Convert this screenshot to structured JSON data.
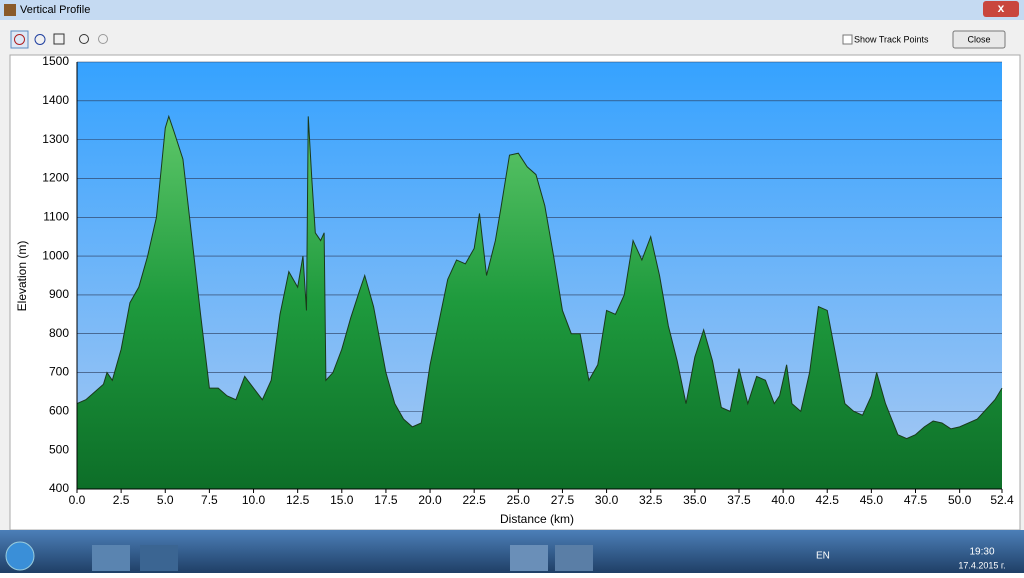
{
  "window": {
    "title": "Vertical Profile",
    "show_track_points": "Show Track Points",
    "close": "Close"
  },
  "chart_data": {
    "type": "area",
    "y_label": "Elevation (m)",
    "x_label": "Distance   (km)",
    "x": [
      0,
      0.5,
      1,
      1.5,
      1.7,
      2,
      2.5,
      3,
      3.5,
      4,
      4.5,
      5,
      5.2,
      5.5,
      6,
      6.5,
      7,
      7.5,
      8,
      8.5,
      9,
      9.5,
      10,
      10.5,
      11,
      11.5,
      12,
      12.5,
      12.8,
      13,
      13.1,
      13.3,
      13.5,
      13.8,
      14,
      14.1,
      14.5,
      15,
      15.5,
      16,
      16.3,
      16.8,
      17.5,
      18,
      18.5,
      19,
      19.5,
      20,
      20.5,
      21,
      21.5,
      22,
      22.5,
      22.8,
      23.2,
      23.7,
      24,
      24.5,
      25,
      25.5,
      26,
      26.5,
      27,
      27.5,
      28,
      28.5,
      29,
      29.5,
      30,
      30.5,
      31,
      31.5,
      32,
      32.5,
      33,
      33.5,
      34,
      34.5,
      35,
      35.5,
      36,
      36.5,
      37,
      37.5,
      38,
      38.5,
      39,
      39.5,
      39.8,
      40.2,
      40.5,
      41,
      41.5,
      42,
      42.5,
      43,
      43.5,
      44,
      44.5,
      45,
      45.3,
      45.8,
      46.5,
      47,
      47.5,
      48,
      48.5,
      49,
      49.5,
      50,
      51,
      52,
      52.4
    ],
    "values": [
      620,
      630,
      650,
      670,
      700,
      680,
      760,
      880,
      920,
      1000,
      1100,
      1330,
      1360,
      1320,
      1250,
      1050,
      850,
      660,
      660,
      640,
      630,
      690,
      660,
      630,
      680,
      850,
      960,
      920,
      1000,
      860,
      1360,
      1200,
      1060,
      1040,
      1060,
      680,
      700,
      760,
      840,
      910,
      950,
      870,
      700,
      620,
      580,
      560,
      570,
      720,
      830,
      940,
      990,
      980,
      1020,
      1110,
      950,
      1040,
      1120,
      1260,
      1265,
      1230,
      1210,
      1130,
      1000,
      860,
      800,
      800,
      680,
      720,
      860,
      850,
      900,
      1040,
      990,
      1050,
      950,
      820,
      730,
      620,
      740,
      810,
      730,
      610,
      600,
      710,
      620,
      690,
      680,
      620,
      640,
      720,
      620,
      600,
      700,
      870,
      860,
      740,
      620,
      600,
      590,
      640,
      700,
      620,
      540,
      530,
      540,
      560,
      575,
      570,
      555,
      560,
      580,
      630,
      660
    ],
    "color": "#1e9a3d",
    "grid": true,
    "xlim": [
      0,
      52.4
    ],
    "ylim": [
      400,
      1500
    ],
    "xticks": [
      {
        "value": 0,
        "label": "0.0"
      },
      2.5,
      {
        "value": 5,
        "label": "5.0"
      },
      7.5,
      {
        "value": 10,
        "label": "10.0"
      },
      12.5,
      {
        "value": 15,
        "label": "15.0"
      },
      17.5,
      {
        "value": 20,
        "label": "20.0"
      },
      22.5,
      {
        "value": 25,
        "label": "25.0"
      },
      27.5,
      {
        "value": 30,
        "label": "30.0"
      },
      32.5,
      {
        "value": 35,
        "label": "35.0"
      },
      37.5,
      {
        "value": 40,
        "label": "40.0"
      },
      42.5,
      {
        "value": 45,
        "label": "45.0"
      },
      47.5,
      {
        "value": 50,
        "label": "50.0"
      },
      52.4
    ],
    "yticks": [
      400,
      500,
      600,
      700,
      800,
      900,
      1000,
      1100,
      1200,
      1300,
      1400,
      1500
    ]
  },
  "taskbar": {
    "language": "EN",
    "time": "19:30",
    "date": "17.4.2015 г."
  }
}
